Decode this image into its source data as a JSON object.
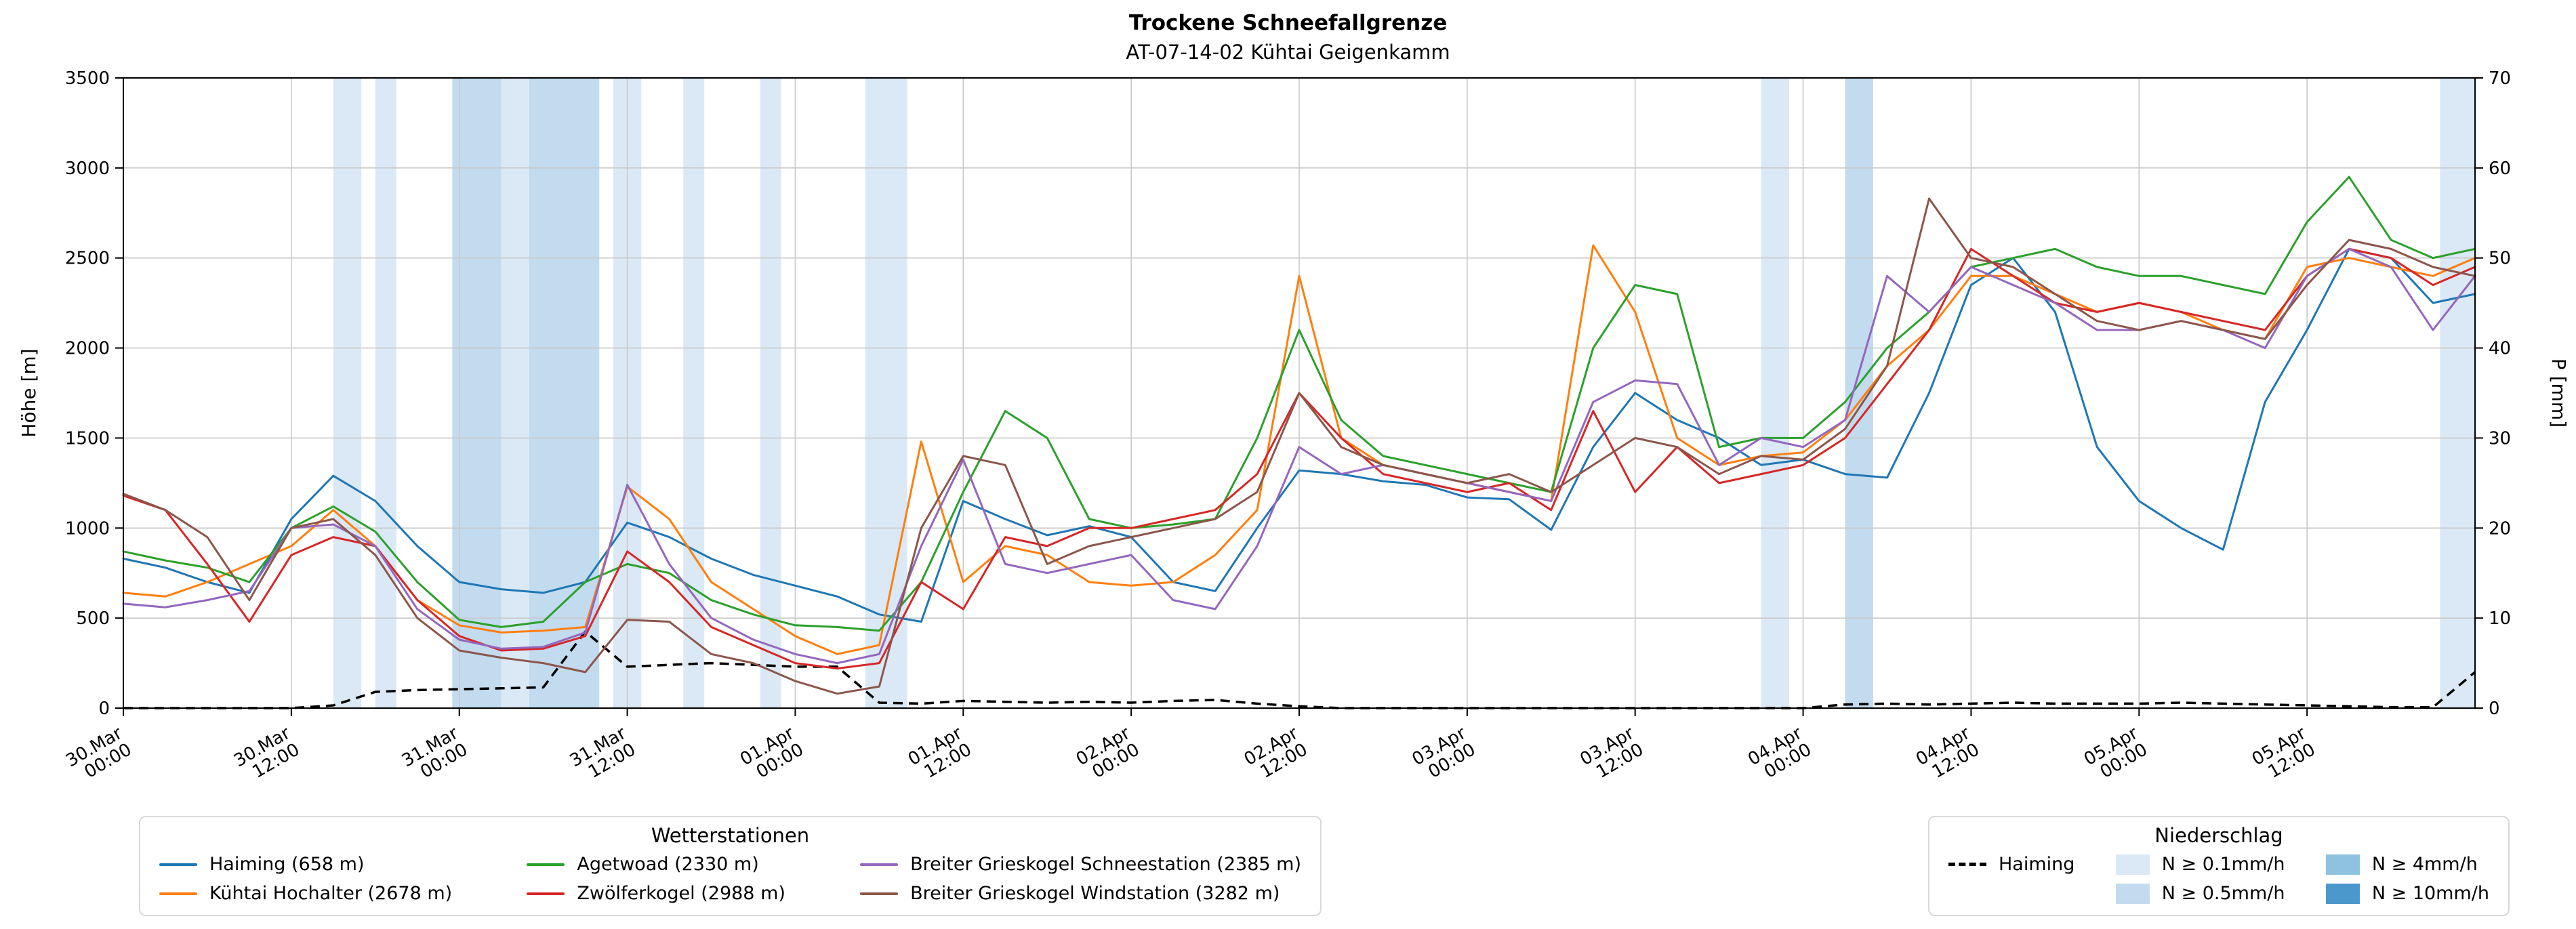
{
  "chart_data": {
    "type": "line",
    "title": "Trockene Schneefallgrenze",
    "subtitle": "AT-07-14-02 Kühtai Geigenkamm",
    "ylabel_left": "Höhe [m]",
    "ylabel_right": "P [mm]",
    "ylim_left": [
      0,
      3500
    ],
    "ylim_right": [
      0,
      70
    ],
    "yticks_left": [
      0,
      500,
      1000,
      1500,
      2000,
      2500,
      3000,
      3500
    ],
    "yticks_right": [
      0,
      10,
      20,
      30,
      40,
      50,
      60,
      70
    ],
    "grid": true,
    "x_total_hours": 168,
    "x_step_hours": 3,
    "xticks": [
      [
        "30.Mar",
        "00:00"
      ],
      [
        "30.Mar",
        "12:00"
      ],
      [
        "31.Mar",
        "00:00"
      ],
      [
        "31.Mar",
        "12:00"
      ],
      [
        "01.Apr",
        "00:00"
      ],
      [
        "01.Apr",
        "12:00"
      ],
      [
        "02.Apr",
        "00:00"
      ],
      [
        "02.Apr",
        "12:00"
      ],
      [
        "03.Apr",
        "00:00"
      ],
      [
        "03.Apr",
        "12:00"
      ],
      [
        "04.Apr",
        "00:00"
      ],
      [
        "04.Apr",
        "12:00"
      ],
      [
        "05.Apr",
        "00:00"
      ],
      [
        "05.Apr",
        "12:00"
      ]
    ],
    "series": [
      {
        "id": "haiming",
        "name": "Haiming (658 m)",
        "color": "#1f77b4",
        "axis": "left",
        "values": [
          830,
          780,
          700,
          640,
          1050,
          1290,
          1150,
          900,
          700,
          660,
          640,
          700,
          1030,
          950,
          830,
          740,
          680,
          620,
          520,
          480,
          1150,
          1050,
          960,
          1010,
          950,
          700,
          650,
          1000,
          1320,
          1300,
          1260,
          1240,
          1170,
          1160,
          990,
          1450,
          1750,
          1600,
          1500,
          1350,
          1380,
          1300,
          1280,
          1750,
          2350,
          2500,
          2200,
          1450,
          1150,
          1000,
          880,
          1700,
          2100,
          2550,
          2500,
          2250,
          2300
        ]
      },
      {
        "id": "kuehtai-hochalter",
        "name": "Kühtai Hochalter (2678 m)",
        "color": "#ff7f0e",
        "axis": "left",
        "values": [
          640,
          620,
          700,
          800,
          900,
          1100,
          900,
          600,
          460,
          420,
          430,
          450,
          1230,
          1050,
          700,
          550,
          400,
          300,
          350,
          1480,
          700,
          900,
          850,
          700,
          680,
          700,
          850,
          1100,
          2400,
          1500,
          1350,
          1300,
          1250,
          1200,
          1150,
          2570,
          2200,
          1500,
          1350,
          1400,
          1420,
          1600,
          1900,
          2100,
          2400,
          2400,
          2300,
          2200,
          2250,
          2200,
          2100,
          2050,
          2450,
          2500,
          2450,
          2400,
          2500
        ]
      },
      {
        "id": "agetwoad",
        "name": "Agetwoad (2330 m)",
        "color": "#2ca02c",
        "axis": "left",
        "values": [
          870,
          820,
          780,
          700,
          1000,
          1120,
          980,
          700,
          490,
          450,
          480,
          700,
          800,
          750,
          600,
          520,
          460,
          450,
          430,
          700,
          1200,
          1650,
          1500,
          1050,
          1000,
          1020,
          1050,
          1500,
          2100,
          1600,
          1400,
          1350,
          1300,
          1250,
          1200,
          2000,
          2350,
          2300,
          1450,
          1500,
          1500,
          1700,
          2000,
          2200,
          2450,
          2500,
          2550,
          2450,
          2400,
          2400,
          2350,
          2300,
          2700,
          2950,
          2600,
          2500,
          2550
        ]
      },
      {
        "id": "zwoelferkogel",
        "name": "Zwölferkogel (2988 m)",
        "color": "#d62728",
        "axis": "left",
        "values": [
          1180,
          1100,
          800,
          480,
          850,
          950,
          900,
          600,
          400,
          320,
          330,
          400,
          870,
          700,
          450,
          350,
          250,
          220,
          250,
          700,
          550,
          950,
          900,
          1000,
          1000,
          1050,
          1100,
          1300,
          1750,
          1500,
          1300,
          1250,
          1200,
          1250,
          1100,
          1650,
          1200,
          1450,
          1250,
          1300,
          1350,
          1500,
          1800,
          2100,
          2550,
          2400,
          2250,
          2200,
          2250,
          2200,
          2150,
          2100,
          2400,
          2550,
          2500,
          2350,
          2450
        ]
      },
      {
        "id": "bg-schneestation",
        "name": "Breiter Grieskogel Schneestation (2385 m)",
        "color": "#9467bd",
        "axis": "left",
        "values": [
          580,
          560,
          600,
          650,
          1000,
          1020,
          900,
          550,
          380,
          330,
          340,
          420,
          1240,
          800,
          500,
          380,
          300,
          250,
          300,
          900,
          1380,
          800,
          750,
          800,
          850,
          600,
          550,
          900,
          1450,
          1300,
          1350,
          1300,
          1250,
          1200,
          1150,
          1700,
          1820,
          1800,
          1350,
          1500,
          1450,
          1600,
          2400,
          2200,
          2450,
          2350,
          2250,
          2100,
          2100,
          2150,
          2100,
          2000,
          2400,
          2550,
          2450,
          2100,
          2400
        ]
      },
      {
        "id": "bg-windstation",
        "name": "Breiter Grieskogel Windstation (3282 m)",
        "color": "#8c564b",
        "axis": "left",
        "values": [
          1190,
          1100,
          950,
          600,
          1000,
          1050,
          850,
          500,
          320,
          280,
          250,
          200,
          490,
          480,
          300,
          250,
          150,
          80,
          120,
          1000,
          1400,
          1350,
          800,
          900,
          950,
          1000,
          1050,
          1200,
          1750,
          1450,
          1350,
          1300,
          1250,
          1300,
          1200,
          1350,
          1500,
          1450,
          1300,
          1400,
          1380,
          1550,
          1900,
          2830,
          2500,
          2450,
          2300,
          2150,
          2100,
          2150,
          2100,
          2050,
          2350,
          2600,
          2550,
          2450,
          2400
        ]
      }
    ],
    "precip_line": {
      "id": "haiming-precip",
      "name": "Haiming",
      "color": "#000000",
      "style": "dashed",
      "axis": "right",
      "values": [
        0,
        0,
        0,
        0,
        0,
        0.3,
        1.8,
        2.0,
        2.1,
        2.2,
        2.3,
        8.5,
        4.6,
        4.8,
        5.0,
        4.8,
        4.6,
        4.6,
        0.6,
        0.5,
        0.8,
        0.7,
        0.6,
        0.7,
        0.6,
        0.8,
        0.9,
        0.5,
        0.2,
        0,
        0,
        0,
        0,
        0,
        0,
        0,
        0,
        0,
        0,
        0,
        0,
        0.4,
        0.5,
        0.4,
        0.5,
        0.6,
        0.5,
        0.5,
        0.5,
        0.6,
        0.5,
        0.4,
        0.3,
        0.2,
        0.1,
        0.1,
        4.0
      ]
    },
    "band_levels": [
      {
        "label": "N ≥ 0.1mm/h",
        "color": "#dbe9f6"
      },
      {
        "label": "N ≥ 0.5mm/h",
        "color": "#c2dbef"
      },
      {
        "label": "N ≥ 4mm/h",
        "color": "#8fc2e0"
      },
      {
        "label": "N ≥ 10mm/h",
        "color": "#4a98cc"
      }
    ],
    "precip_bands": [
      {
        "start_h": 15,
        "end_h": 17,
        "level": 1
      },
      {
        "start_h": 18,
        "end_h": 19.5,
        "level": 1
      },
      {
        "start_h": 23.5,
        "end_h": 27,
        "level": 2
      },
      {
        "start_h": 27,
        "end_h": 29,
        "level": 1
      },
      {
        "start_h": 29,
        "end_h": 34,
        "level": 2
      },
      {
        "start_h": 35,
        "end_h": 37,
        "level": 1
      },
      {
        "start_h": 40,
        "end_h": 41.5,
        "level": 1
      },
      {
        "start_h": 45.5,
        "end_h": 47,
        "level": 1
      },
      {
        "start_h": 53,
        "end_h": 56,
        "level": 1
      },
      {
        "start_h": 117,
        "end_h": 119,
        "level": 1
      },
      {
        "start_h": 123,
        "end_h": 125,
        "level": 2
      },
      {
        "start_h": 165.5,
        "end_h": 168,
        "level": 1
      }
    ]
  },
  "legends": {
    "stations": {
      "title": "Wetterstationen",
      "items": [
        {
          "label": "Haiming (658 m)",
          "color": "#1f77b4"
        },
        {
          "label": "Kühtai Hochalter (2678 m)",
          "color": "#ff7f0e"
        },
        {
          "label": "Agetwoad (2330 m)",
          "color": "#2ca02c"
        },
        {
          "label": "Zwölferkogel (2988 m)",
          "color": "#d62728"
        },
        {
          "label": "Breiter Grieskogel Schneestation (2385 m)",
          "color": "#9467bd"
        },
        {
          "label": "Breiter Grieskogel Windstation (3282 m)",
          "color": "#8c564b"
        }
      ]
    },
    "precip": {
      "title": "Niederschlag",
      "line_item": {
        "label": "Haiming"
      },
      "patch_items": [
        {
          "label": "N ≥ 0.1mm/h",
          "color": "#dbe9f6"
        },
        {
          "label": "N ≥ 0.5mm/h",
          "color": "#c2dbef"
        },
        {
          "label": "N ≥ 4mm/h",
          "color": "#8fc2e0"
        },
        {
          "label": "N ≥ 10mm/h",
          "color": "#4a98cc"
        }
      ]
    }
  }
}
